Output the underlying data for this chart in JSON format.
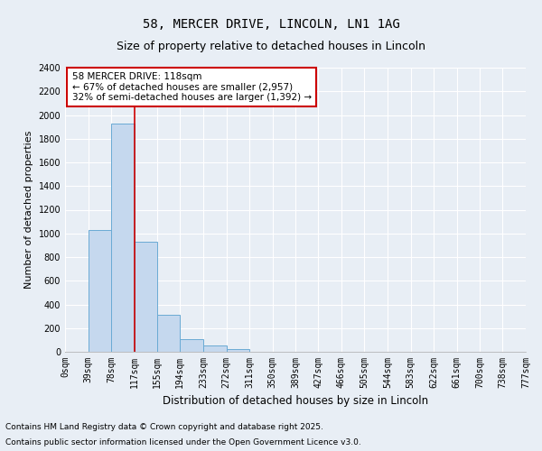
{
  "title": "58, MERCER DRIVE, LINCOLN, LN1 1AG",
  "subtitle": "Size of property relative to detached houses in Lincoln",
  "xlabel": "Distribution of detached houses by size in Lincoln",
  "ylabel": "Number of detached properties",
  "bar_values": [
    0,
    1030,
    1930,
    930,
    310,
    110,
    55,
    25,
    0,
    0,
    0,
    0,
    0,
    0,
    0,
    0,
    0,
    0,
    0,
    0
  ],
  "bin_edges": [
    0,
    39,
    78,
    117,
    155,
    194,
    233,
    272,
    311,
    350,
    389,
    427,
    466,
    505,
    544,
    583,
    622,
    661,
    700,
    738,
    777
  ],
  "xtick_labels": [
    "0sqm",
    "39sqm",
    "78sqm",
    "117sqm",
    "155sqm",
    "194sqm",
    "233sqm",
    "272sqm",
    "311sqm",
    "350sqm",
    "389sqm",
    "427sqm",
    "466sqm",
    "505sqm",
    "544sqm",
    "583sqm",
    "622sqm",
    "661sqm",
    "700sqm",
    "738sqm",
    "777sqm"
  ],
  "bar_color": "#c5d8ee",
  "bar_edge_color": "#6aaad4",
  "property_line_x": 118,
  "property_line_color": "#cc0000",
  "ylim": [
    0,
    2400
  ],
  "yticks": [
    0,
    200,
    400,
    600,
    800,
    1000,
    1200,
    1400,
    1600,
    1800,
    2000,
    2200,
    2400
  ],
  "annotation_title": "58 MERCER DRIVE: 118sqm",
  "annotation_line1": "← 67% of detached houses are smaller (2,957)",
  "annotation_line2": "32% of semi-detached houses are larger (1,392) →",
  "annotation_box_facecolor": "#ffffff",
  "annotation_box_edge": "#cc0000",
  "footer1": "Contains HM Land Registry data © Crown copyright and database right 2025.",
  "footer2": "Contains public sector information licensed under the Open Government Licence v3.0.",
  "background_color": "#e8eef5",
  "grid_color": "#ffffff",
  "title_fontsize": 10,
  "subtitle_fontsize": 9,
  "axis_label_fontsize": 8.5,
  "tick_fontsize": 7,
  "annotation_fontsize": 7.5,
  "footer_fontsize": 6.5,
  "ylabel_fontsize": 8
}
